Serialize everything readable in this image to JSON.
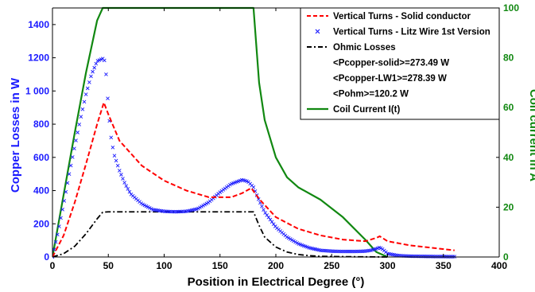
{
  "chart_data": {
    "type": "line",
    "xlabel": "Position in Electrical Degree (°)",
    "ylabel_left": "Copper Losses in W",
    "ylabel_right": "Coil current in A",
    "xlim": [
      0,
      400
    ],
    "ylim_left": [
      0,
      1500
    ],
    "ylim_right": [
      0,
      100
    ],
    "x_ticks": [
      "0",
      "50",
      "100",
      "150",
      "200",
      "250",
      "300",
      "350",
      "400"
    ],
    "y_ticks_left": [
      "0",
      "200",
      "400",
      "600",
      "800",
      "1 000",
      "1200",
      "1400"
    ],
    "y_ticks_right": [
      "0",
      "20",
      "40",
      "60",
      "80",
      "100"
    ],
    "grid": false,
    "legend_position": "top-right",
    "legend_entries": [
      {
        "label": "Vertical Turns - Solid conductor",
        "style": "red-dashed"
      },
      {
        "label": "Vertical Turns - Litz Wire 1st Version",
        "style": "blue-x"
      },
      {
        "label": "Ohmic Losses",
        "style": "black-dashdot"
      },
      {
        "label": "<Pcopper-solid>=273.49 W",
        "style": "none"
      },
      {
        "label": "<Pcopper-LW1>=278.39 W",
        "style": "none"
      },
      {
        "label": "<Pohm>=120.2 W",
        "style": "none"
      },
      {
        "label": "Coil Current I(t)",
        "style": "green-solid"
      }
    ],
    "colors": {
      "solid": "#ff0000",
      "litz": "#1a1aff",
      "ohmic": "#000000",
      "current": "#118811",
      "left_axis": "#1a1aff",
      "right_axis": "#118811"
    },
    "series": [
      {
        "name": "Vertical Turns - Solid conductor",
        "axis": "left",
        "x": [
          0,
          10,
          20,
          30,
          40,
          46,
          50,
          60,
          80,
          100,
          120,
          140,
          160,
          170,
          178,
          185,
          200,
          220,
          240,
          260,
          280,
          290,
          293,
          300,
          320,
          340,
          360
        ],
        "y": [
          0,
          130,
          330,
          560,
          800,
          930,
          860,
          700,
          550,
          460,
          400,
          360,
          360,
          385,
          415,
          350,
          240,
          170,
          130,
          105,
          95,
          115,
          125,
          95,
          70,
          55,
          40
        ]
      },
      {
        "name": "Vertical Turns - Litz Wire 1st Version",
        "axis": "left",
        "x": [
          0,
          5,
          10,
          15,
          20,
          25,
          30,
          35,
          40,
          45,
          47,
          48,
          49,
          50,
          51,
          52,
          55,
          60,
          65,
          70,
          80,
          90,
          100,
          110,
          120,
          130,
          140,
          150,
          160,
          170,
          175,
          180,
          185,
          190,
          200,
          210,
          220,
          230,
          240,
          250,
          260,
          270,
          280,
          285,
          290,
          293,
          296,
          300,
          310,
          320,
          340,
          360
        ],
        "y": [
          0,
          150,
          320,
          500,
          670,
          830,
          980,
          1100,
          1180,
          1195,
          1180,
          1100,
          1000,
          910,
          820,
          740,
          620,
          520,
          440,
          380,
          320,
          285,
          275,
          272,
          275,
          290,
          330,
          390,
          440,
          465,
          455,
          420,
          340,
          270,
          180,
          120,
          80,
          55,
          40,
          35,
          33,
          33,
          35,
          40,
          50,
          58,
          45,
          20,
          8,
          5,
          3,
          2
        ]
      },
      {
        "name": "Ohmic Losses",
        "axis": "left",
        "x": [
          0,
          10,
          20,
          30,
          40,
          45,
          50,
          100,
          150,
          180,
          185,
          190,
          200,
          210,
          220,
          230,
          240,
          260,
          280,
          300
        ],
        "y": [
          0,
          20,
          65,
          140,
          230,
          270,
          272,
          272,
          272,
          272,
          190,
          120,
          60,
          30,
          15,
          8,
          4,
          2,
          1,
          0
        ]
      },
      {
        "name": "Coil Current I(t)",
        "axis": "right",
        "x": [
          0,
          10,
          20,
          30,
          40,
          45,
          180,
          185,
          190,
          200,
          210,
          220,
          240,
          260,
          280,
          290,
          300
        ],
        "y": [
          0,
          25,
          50,
          74,
          95,
          100,
          100,
          70,
          55,
          40,
          32,
          28,
          23,
          16,
          7,
          2,
          0
        ]
      }
    ]
  }
}
